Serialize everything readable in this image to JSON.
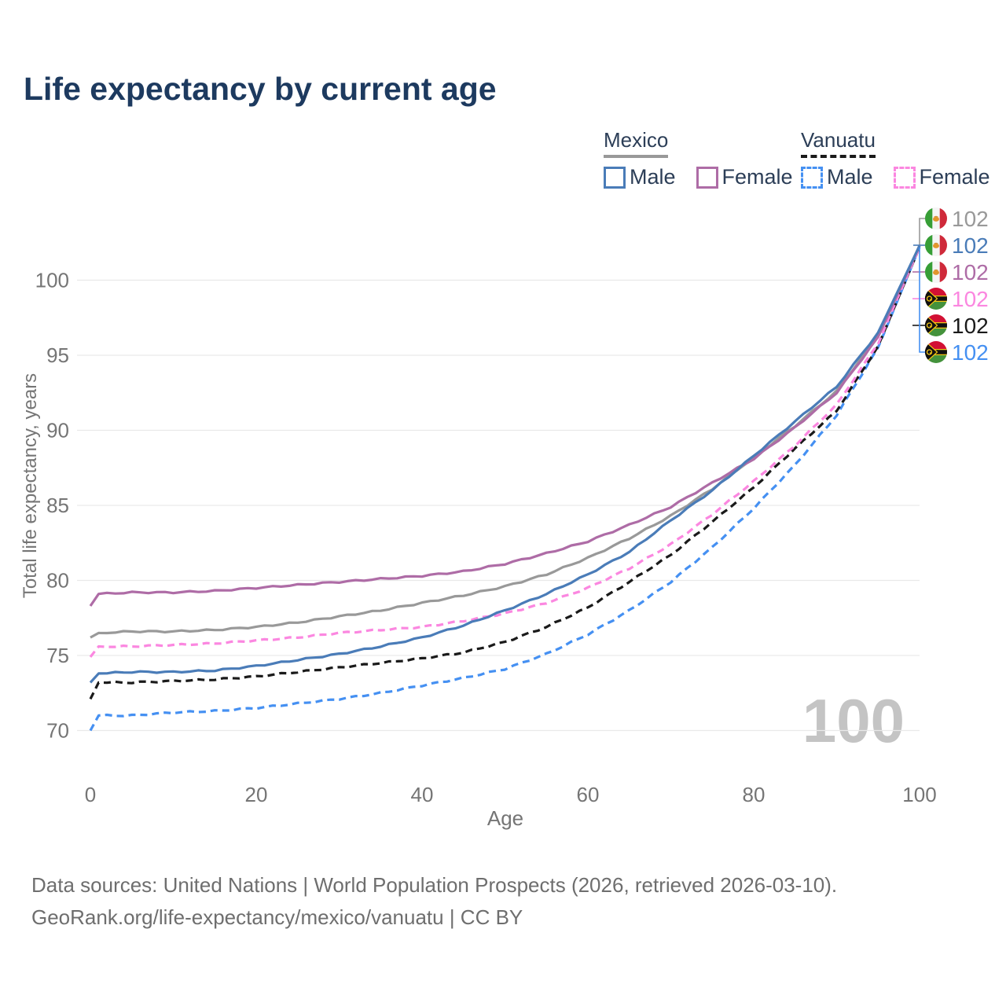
{
  "title": "Life expectancy by current age",
  "legend": {
    "groups": [
      {
        "label": "Mexico",
        "underline": {
          "color": "#999999",
          "style": "solid"
        },
        "items": [
          {
            "label": "Male",
            "color": "#4a7cb8",
            "style": "solid"
          },
          {
            "label": "Female",
            "color": "#ae6ca6",
            "style": "solid"
          }
        ]
      },
      {
        "label": "Vanuatu",
        "underline": {
          "color": "#1a1a1a",
          "style": "dashed"
        },
        "items": [
          {
            "label": "Male",
            "color": "#4590f2",
            "style": "dashed"
          },
          {
            "label": "Female",
            "color": "#fb87e0",
            "style": "dashed"
          }
        ]
      }
    ]
  },
  "chart_data": {
    "type": "line",
    "title": "Life expectancy by current age",
    "xlabel": "Age",
    "ylabel": "Total life expectancy, years",
    "x_ticks": [
      0,
      20,
      40,
      60,
      80,
      100
    ],
    "y_ticks": [
      70,
      75,
      80,
      85,
      90,
      95,
      100
    ],
    "xlim": [
      0,
      100
    ],
    "ylim": [
      69,
      103
    ],
    "grid": "horizontal-only",
    "age_counter": "100",
    "x": [
      0,
      1,
      5,
      10,
      15,
      20,
      25,
      30,
      35,
      40,
      45,
      50,
      55,
      60,
      65,
      70,
      75,
      80,
      85,
      90,
      95,
      100
    ],
    "series": [
      {
        "name": "Mexico",
        "country": "Mexico",
        "color": "#999999",
        "dash": "solid",
        "flag": "mexico-flag-icon",
        "end_value": "102",
        "values": [
          76.2,
          76.5,
          76.6,
          76.6,
          76.7,
          76.9,
          77.2,
          77.6,
          78.0,
          78.5,
          79.0,
          79.6,
          80.4,
          81.5,
          82.8,
          84.3,
          86.1,
          88.2,
          90.3,
          92.6,
          96.3,
          102.3
        ]
      },
      {
        "name": "Mexico Male",
        "country": "Mexico",
        "color": "#4a7cb8",
        "dash": "solid",
        "flag": "mexico-flag-icon",
        "end_value": "102",
        "values": [
          73.2,
          73.8,
          73.9,
          73.9,
          74.0,
          74.3,
          74.7,
          75.1,
          75.6,
          76.2,
          77.0,
          78.0,
          79.1,
          80.4,
          81.9,
          84.0,
          86.0,
          88.3,
          90.6,
          92.9,
          96.5,
          102.3
        ]
      },
      {
        "name": "Mexico Female",
        "country": "Mexico",
        "color": "#ae6ca6",
        "dash": "solid",
        "flag": "mexico-flag-icon",
        "end_value": "102",
        "values": [
          78.3,
          79.1,
          79.2,
          79.2,
          79.3,
          79.5,
          79.7,
          79.9,
          80.1,
          80.3,
          80.6,
          81.1,
          81.8,
          82.6,
          83.7,
          84.9,
          86.5,
          88.1,
          90.2,
          92.5,
          96.2,
          102.3
        ]
      },
      {
        "name": "Vanuatu Female",
        "country": "Vanuatu",
        "color": "#fb87e0",
        "dash": "dashed",
        "flag": "vanuatu-flag-icon",
        "end_value": "102",
        "values": [
          74.9,
          75.6,
          75.6,
          75.7,
          75.8,
          76.0,
          76.2,
          76.5,
          76.7,
          76.9,
          77.3,
          77.8,
          78.5,
          79.5,
          80.8,
          82.4,
          84.4,
          86.6,
          89.0,
          91.7,
          95.8,
          102.2
        ]
      },
      {
        "name": "Vanuatu",
        "country": "Vanuatu",
        "color": "#1a1a1a",
        "dash": "dashed",
        "flag": "vanuatu-flag-icon",
        "end_value": "102",
        "values": [
          72.1,
          73.2,
          73.2,
          73.3,
          73.4,
          73.6,
          73.9,
          74.2,
          74.5,
          74.8,
          75.2,
          75.9,
          76.9,
          78.2,
          79.9,
          81.7,
          83.9,
          86.2,
          88.8,
          91.3,
          95.6,
          102.2
        ]
      },
      {
        "name": "Vanuatu Male",
        "country": "Vanuatu",
        "color": "#4590f2",
        "dash": "dashed",
        "flag": "vanuatu-flag-icon",
        "end_value": "102",
        "values": [
          70.0,
          71.0,
          71.0,
          71.2,
          71.3,
          71.5,
          71.8,
          72.1,
          72.5,
          73.0,
          73.5,
          74.1,
          75.1,
          76.4,
          78.0,
          79.9,
          82.2,
          84.8,
          87.7,
          91.0,
          95.5,
          102.2
        ]
      }
    ],
    "legend_position": "top-right"
  },
  "colors": {
    "title_text": "#1d3a5f",
    "legend_text": "#2c3e57",
    "axis_text": "#757575",
    "gridline": "#e9e9e9",
    "watermark": "#c4c4c4",
    "footer_text": "#6e6e6e"
  },
  "footer": {
    "line1": "Data sources: United Nations | World Population Prospects (2026, retrieved 2026-03-10).",
    "line2": "GeoRank.org/life-expectancy/mexico/vanuatu | CC BY"
  }
}
